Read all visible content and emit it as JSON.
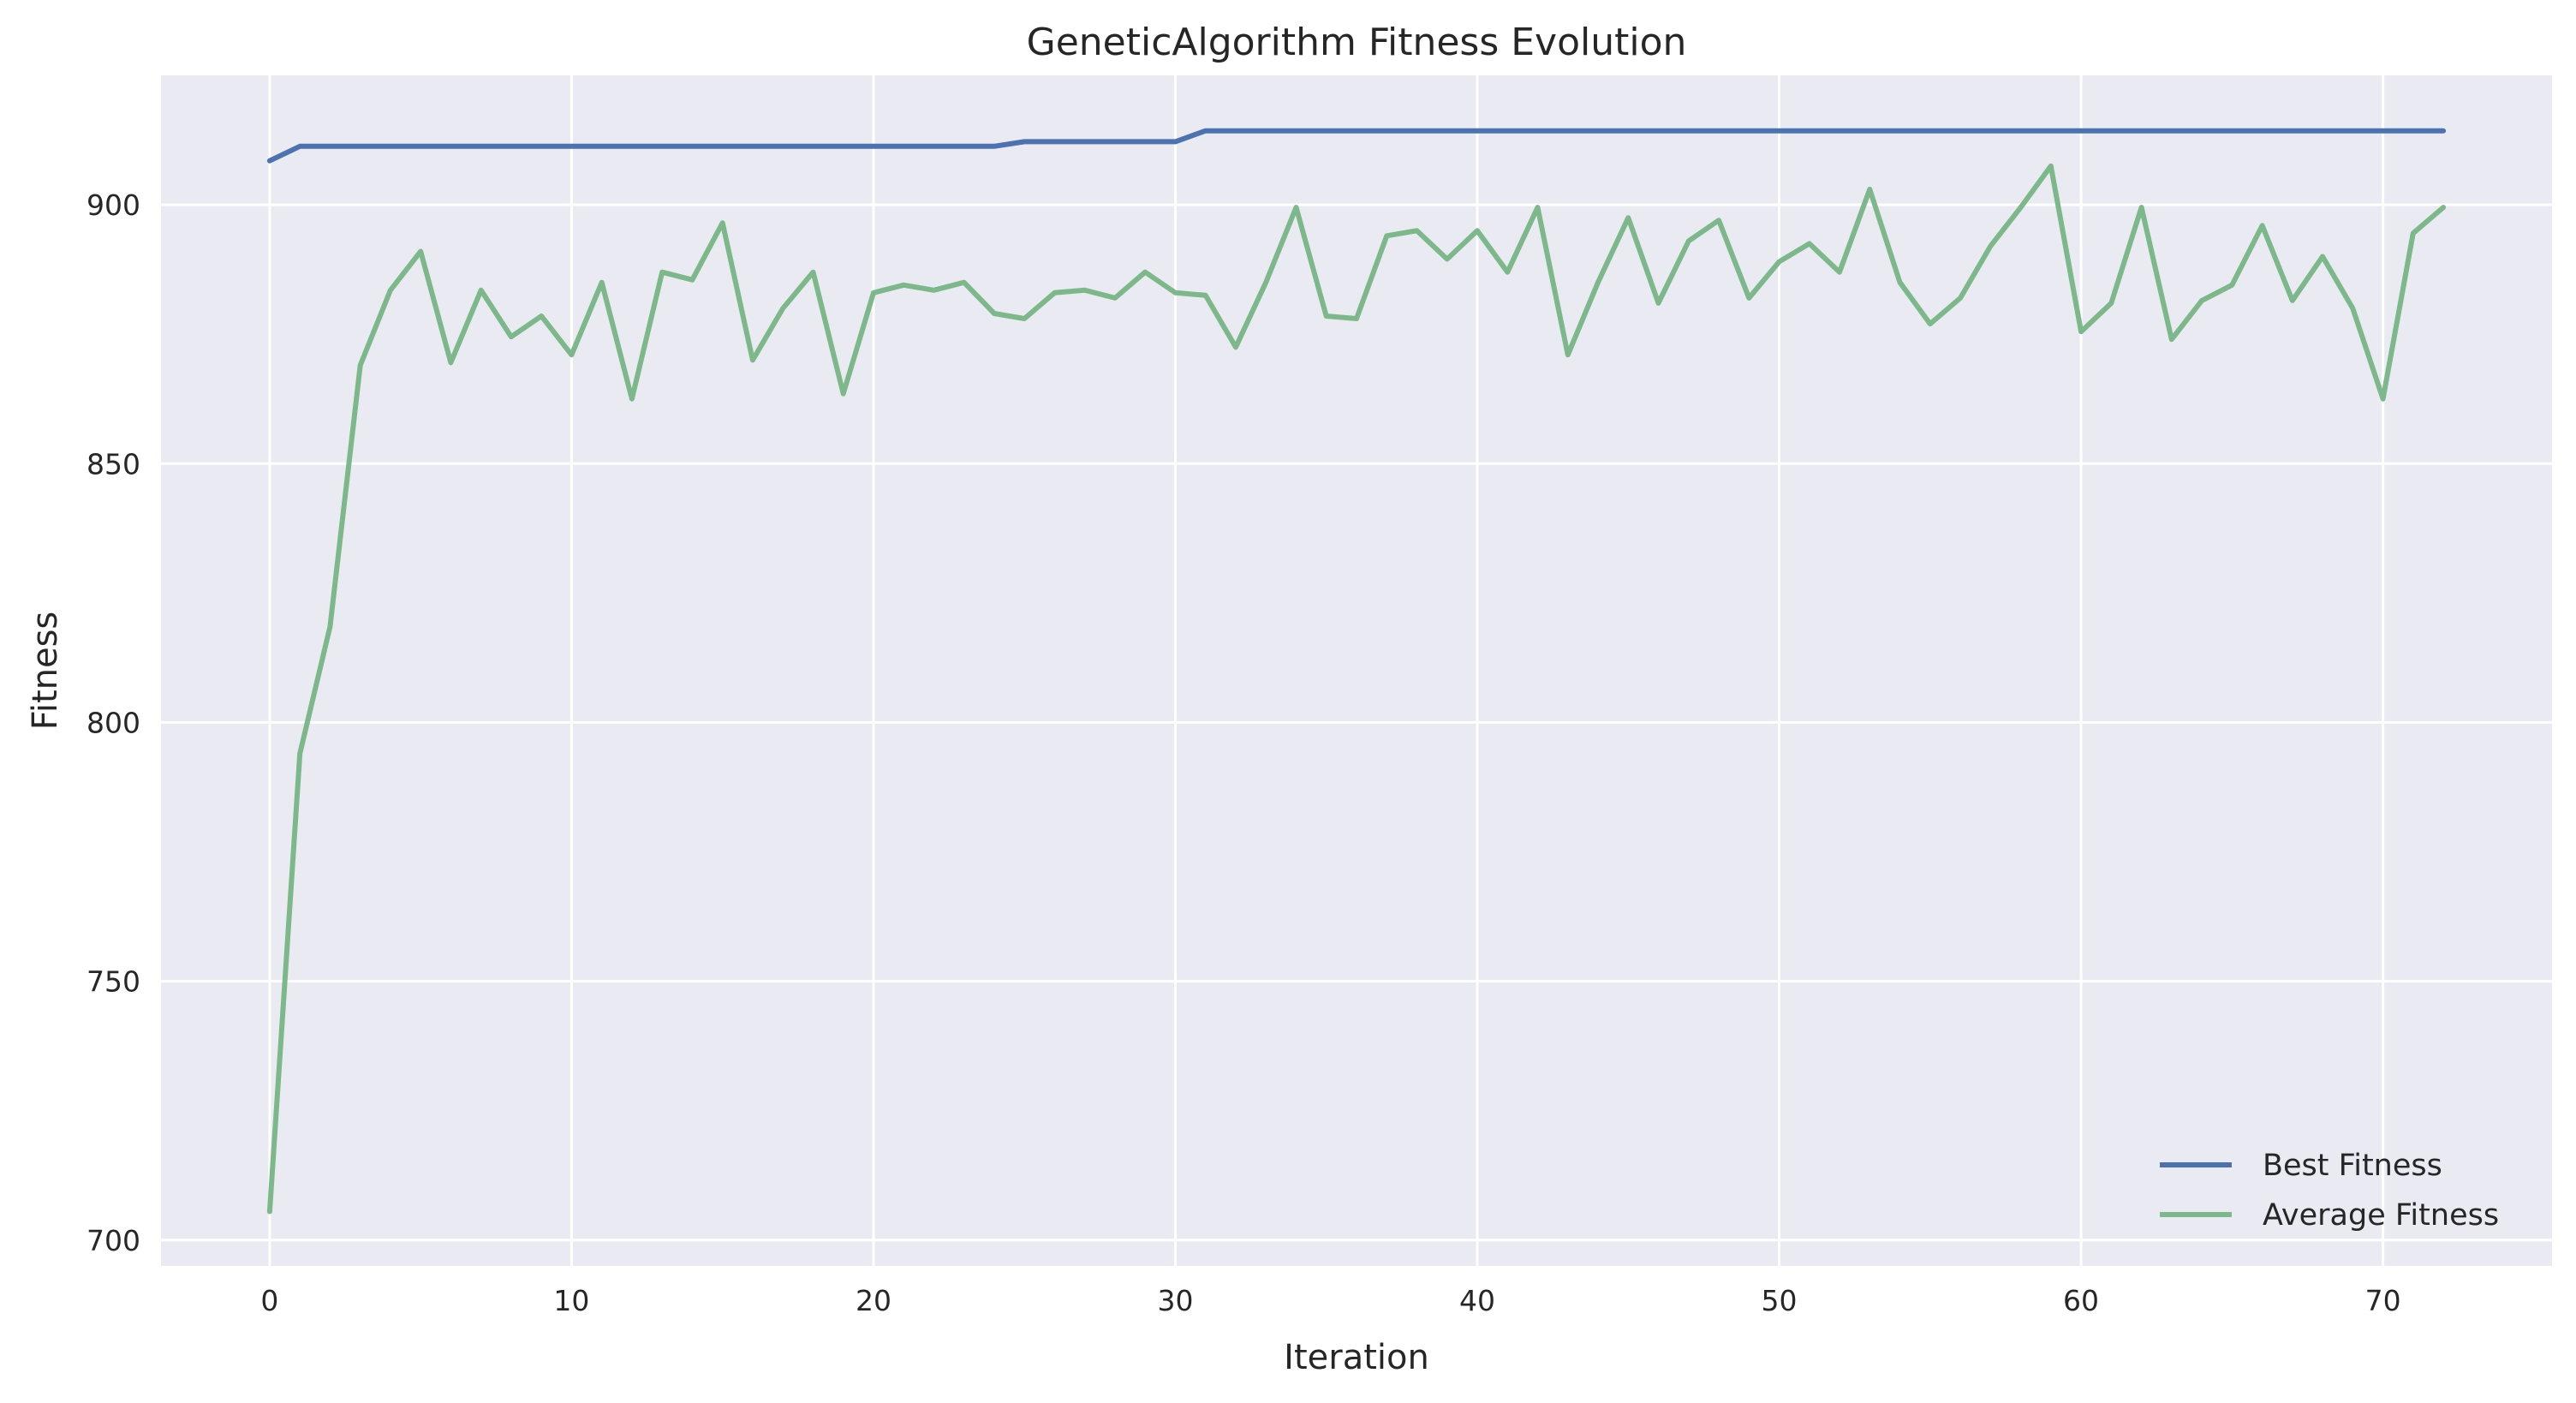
{
  "chart_data": {
    "type": "line",
    "title": "GeneticAlgorithm Fitness Evolution",
    "xlabel": "Iteration",
    "ylabel": "Fitness",
    "xlim": [
      -3.6,
      75.6
    ],
    "ylim": [
      695,
      925
    ],
    "xticks": [
      0,
      10,
      20,
      30,
      40,
      50,
      60,
      70
    ],
    "yticks": [
      700,
      750,
      800,
      850,
      900
    ],
    "grid": true,
    "legend_position": "lower-right",
    "background_color": "#EAEAF2",
    "x": [
      0,
      1,
      2,
      3,
      4,
      5,
      6,
      7,
      8,
      9,
      10,
      11,
      12,
      13,
      14,
      15,
      16,
      17,
      18,
      19,
      20,
      21,
      22,
      23,
      24,
      25,
      26,
      27,
      28,
      29,
      30,
      31,
      32,
      33,
      34,
      35,
      36,
      37,
      38,
      39,
      40,
      41,
      42,
      43,
      44,
      45,
      46,
      47,
      48,
      49,
      50,
      51,
      52,
      53,
      54,
      55,
      56,
      57,
      58,
      59,
      60,
      61,
      62,
      63,
      64,
      65,
      66,
      67,
      68,
      69,
      70,
      71,
      72
    ],
    "series": [
      {
        "name": "Best Fitness",
        "color": "#4C72B0",
        "values": [
          908.5,
          911.3,
          911.3,
          911.3,
          911.3,
          911.3,
          911.3,
          911.3,
          911.3,
          911.3,
          911.3,
          911.3,
          911.3,
          911.3,
          911.3,
          911.3,
          911.3,
          911.3,
          911.3,
          911.3,
          911.3,
          911.3,
          911.3,
          911.3,
          911.3,
          912.2,
          912.2,
          912.2,
          912.2,
          912.2,
          912.2,
          914.3,
          914.3,
          914.3,
          914.3,
          914.3,
          914.3,
          914.3,
          914.3,
          914.3,
          914.3,
          914.3,
          914.3,
          914.3,
          914.3,
          914.3,
          914.3,
          914.3,
          914.3,
          914.3,
          914.3,
          914.3,
          914.3,
          914.3,
          914.3,
          914.3,
          914.3,
          914.3,
          914.3,
          914.3,
          914.3,
          914.3,
          914.3,
          914.3,
          914.3,
          914.3,
          914.3,
          914.3,
          914.3,
          914.3,
          914.3,
          914.3,
          914.3
        ]
      },
      {
        "name": "Average Fitness",
        "color": "#7DB88A",
        "values": [
          705.5,
          794.0,
          818.5,
          869.0,
          883.5,
          891.0,
          869.5,
          883.5,
          874.5,
          878.5,
          871.0,
          885.0,
          862.5,
          887.0,
          885.5,
          896.5,
          870.0,
          880.0,
          887.0,
          863.5,
          883.0,
          884.5,
          883.5,
          885.0,
          879.0,
          878.0,
          883.0,
          883.5,
          882.0,
          887.0,
          883.0,
          882.5,
          872.5,
          885.0,
          899.5,
          878.5,
          878.0,
          894.0,
          895.0,
          889.5,
          895.0,
          887.0,
          899.5,
          871.0,
          885.0,
          897.5,
          881.0,
          893.0,
          897.0,
          882.0,
          889.0,
          892.5,
          887.0,
          903.0,
          885.0,
          877.0,
          882.0,
          892.0,
          899.5,
          907.5,
          875.5,
          881.0,
          899.5,
          874.0,
          881.5,
          884.5,
          896.0,
          881.5,
          890.0,
          880.0,
          862.5,
          894.5,
          899.5
        ]
      }
    ]
  }
}
